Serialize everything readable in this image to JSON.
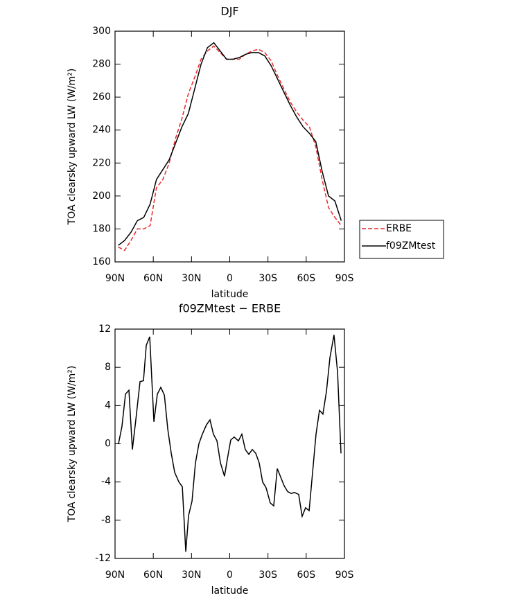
{
  "chart_data": [
    {
      "type": "line",
      "title": "DJF",
      "xlabel": "latitude",
      "ylabel": "TOA clearsky upward LW (W/m²)",
      "x": [
        87.5,
        82.5,
        77.5,
        72.5,
        67.5,
        62.5,
        57.5,
        52.5,
        47.5,
        42.5,
        37.5,
        32.5,
        27.5,
        22.5,
        17.5,
        12.5,
        7.5,
        2.5,
        -2.5,
        -7.5,
        -12.5,
        -17.5,
        -22.5,
        -27.5,
        -32.5,
        -37.5,
        -42.5,
        -47.5,
        -52.5,
        -57.5,
        -62.5,
        -67.5,
        -72.5,
        -77.5,
        -82.5,
        -87.5
      ],
      "series": [
        {
          "name": "ERBE",
          "color": "#e8282a",
          "dashed": true,
          "values": [
            169,
            167,
            173,
            180,
            180,
            182,
            205,
            210,
            220,
            235,
            247,
            262,
            272,
            283,
            288,
            291,
            287,
            283,
            283,
            283,
            286,
            288,
            289,
            287,
            282,
            273,
            265,
            257,
            251,
            246,
            242,
            230,
            210,
            193,
            187,
            182
          ]
        },
        {
          "name": "f09ZMtest",
          "color": "#000000",
          "dashed": false,
          "values": [
            170,
            173,
            178,
            185,
            187,
            195,
            210,
            216,
            222,
            232,
            242,
            250,
            265,
            280,
            290,
            293,
            288,
            283,
            283,
            284,
            286,
            287,
            287,
            285,
            279,
            271,
            263,
            255,
            248,
            242,
            238,
            233,
            215,
            200,
            197,
            185
          ]
        }
      ],
      "xlim": [
        90,
        -90
      ],
      "xticks": [
        {
          "value": 90,
          "label": "90N"
        },
        {
          "value": 60,
          "label": "60N"
        },
        {
          "value": 30,
          "label": "30N"
        },
        0,
        {
          "value": -30,
          "label": "30S"
        },
        {
          "value": -60,
          "label": "60S"
        },
        {
          "value": -90,
          "label": "90S"
        }
      ],
      "ylim": [
        160,
        300
      ],
      "yticks": [
        160,
        180,
        200,
        220,
        240,
        260,
        280,
        300
      ],
      "legend": "right"
    },
    {
      "type": "line",
      "title": "f09ZMtest − ERBE",
      "xlabel": "latitude",
      "ylabel": "TOA clearsky upward LW (W/m²)",
      "x": [
        87.3,
        84.6,
        81.8,
        79.1,
        76.4,
        73.7,
        70.4,
        67.7,
        65.5,
        62.8,
        59.5,
        56.8,
        54.1,
        51.3,
        48.6,
        45.9,
        43.2,
        39.9,
        37.2,
        34.5,
        32.3,
        29.6,
        26.9,
        24.2,
        21.5,
        18.2,
        15.5,
        12.8,
        10.0,
        7.3,
        4.1,
        1.9,
        -0.8,
        -3.5,
        -6.8,
        -9.5,
        -12.2,
        -15.0,
        -17.7,
        -20.4,
        -23.1,
        -25.8,
        -28.5,
        -31.8,
        -34.5,
        -37.3,
        -40.0,
        -42.7,
        -45.4,
        -48.1,
        -50.8,
        -54.1,
        -56.8,
        -59.5,
        -62.3,
        -65.0,
        -67.7,
        -70.4,
        -73.1,
        -75.9,
        -78.6,
        -81.8,
        -84.6,
        -87.3
      ],
      "color": "#000000",
      "values": [
        0,
        1.8,
        5.2,
        5.6,
        -0.6,
        2.5,
        6.5,
        6.6,
        10.3,
        11.2,
        2.3,
        5.2,
        5.9,
        5.1,
        1.5,
        -1,
        -3,
        -4,
        -4.5,
        -11.3,
        -7.5,
        -6,
        -2,
        0,
        1,
        2,
        2.5,
        1,
        0.3,
        -2,
        -3.4,
        -1.6,
        0.4,
        0.7,
        0.3,
        1,
        -0.6,
        -1.1,
        -0.6,
        -1,
        -2,
        -4,
        -4.6,
        -6.2,
        -6.5,
        -2.6,
        -3.5,
        -4.4,
        -5,
        -5.2,
        -5.1,
        -5.3,
        -7.6,
        -6.7,
        -7,
        -3,
        1,
        3.5,
        3.1,
        5.5,
        9,
        11.4,
        7.5,
        -1
      ],
      "xlim": [
        90,
        -90
      ],
      "xticks": [
        {
          "value": 90,
          "label": "90N"
        },
        {
          "value": 60,
          "label": "60N"
        },
        {
          "value": 30,
          "label": "30N"
        },
        0,
        {
          "value": -30,
          "label": "30S"
        },
        {
          "value": -60,
          "label": "60S"
        },
        {
          "value": -90,
          "label": "90S"
        }
      ],
      "ylim": [
        -12,
        12
      ],
      "yticks": [
        -12,
        -8,
        -4,
        0,
        4,
        8,
        12
      ]
    }
  ]
}
